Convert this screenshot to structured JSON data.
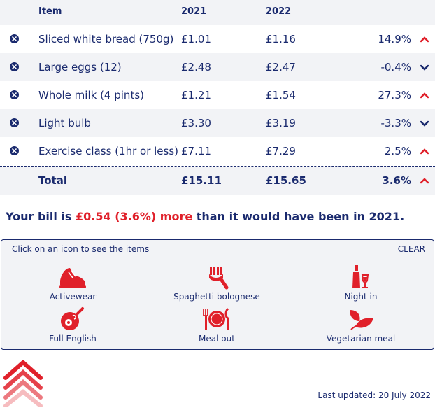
{
  "table": {
    "headers": {
      "item": "Item",
      "y2021": "2021",
      "y2022": "2022"
    },
    "rows": [
      {
        "name": "Sliced white bread (750g)",
        "y2021": "£1.01",
        "y2022": "£1.16",
        "change": "14.9%",
        "direction": "up"
      },
      {
        "name": "Large eggs (12)",
        "y2021": "£2.48",
        "y2022": "£2.47",
        "change": "-0.4%",
        "direction": "down"
      },
      {
        "name": "Whole milk (4 pints)",
        "y2021": "£1.21",
        "y2022": "£1.54",
        "change": "27.3%",
        "direction": "up"
      },
      {
        "name": "Light bulb",
        "y2021": "£3.30",
        "y2022": "£3.19",
        "change": "-3.3%",
        "direction": "down"
      },
      {
        "name": "Exercise class (1hr or less)",
        "y2021": "£7.11",
        "y2022": "£7.29",
        "change": "2.5%",
        "direction": "up"
      }
    ],
    "total": {
      "label": "Total",
      "y2021": "£15.11",
      "y2022": "£15.65",
      "change": "3.6%",
      "direction": "up"
    }
  },
  "bill": {
    "prefix": "Your bill is",
    "amount": "£0.54 (3.6%) more",
    "suffix": "than it would have been in 2021."
  },
  "panel": {
    "hint": "Click on an icon to see the items",
    "clear": "CLEAR",
    "options": [
      {
        "label": "Activewear",
        "icon": "trainer-icon"
      },
      {
        "label": "Spaghetti bolognese",
        "icon": "fork-spaghetti-icon"
      },
      {
        "label": "Night in",
        "icon": "wine-icon"
      },
      {
        "label": "Full English",
        "icon": "frying-pan-icon"
      },
      {
        "label": "Meal out",
        "icon": "plate-cutlery-icon"
      },
      {
        "label": "Vegetarian meal",
        "icon": "leaf-icon"
      }
    ]
  },
  "footer": {
    "updated": "Last updated: 20 July 2022"
  },
  "colors": {
    "navy": "#1a2a6e",
    "red": "#e0202a",
    "panel_bg": "#f2f3f6"
  }
}
